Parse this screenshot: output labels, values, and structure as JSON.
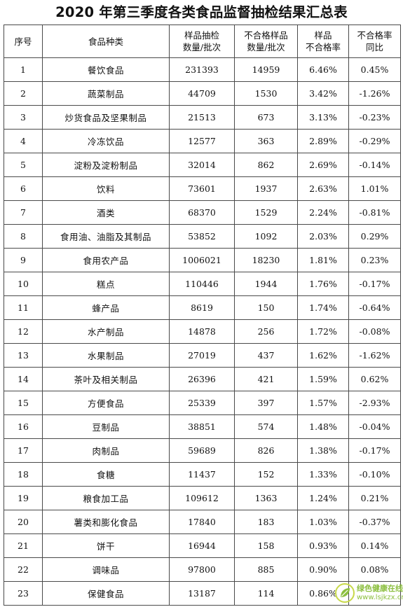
{
  "title": "2020 年第三季度各类食品监督抽检结果汇总表",
  "headers": {
    "index": "序号",
    "category": "食品种类",
    "samples_l1": "样品抽检",
    "samples_l2": "数量/批次",
    "fail_l1": "不合格样品",
    "fail_l2": "数量/批次",
    "rate_l1": "样品",
    "rate_l2": "不合格率",
    "yoy_l1": "不合格率",
    "yoy_l2": "同比"
  },
  "rows": [
    {
      "index": "1",
      "category": "餐饮食品",
      "samples": "231393",
      "failed": "14959",
      "rate": "6.46%",
      "yoy": "0.45%"
    },
    {
      "index": "2",
      "category": "蔬菜制品",
      "samples": "44709",
      "failed": "1530",
      "rate": "3.42%",
      "yoy": "-1.26%"
    },
    {
      "index": "3",
      "category": "炒货食品及坚果制品",
      "samples": "21513",
      "failed": "673",
      "rate": "3.13%",
      "yoy": "-0.23%"
    },
    {
      "index": "4",
      "category": "冷冻饮品",
      "samples": "12577",
      "failed": "363",
      "rate": "2.89%",
      "yoy": "-0.29%"
    },
    {
      "index": "5",
      "category": "淀粉及淀粉制品",
      "samples": "32014",
      "failed": "862",
      "rate": "2.69%",
      "yoy": "-0.14%"
    },
    {
      "index": "6",
      "category": "饮料",
      "samples": "73601",
      "failed": "1937",
      "rate": "2.63%",
      "yoy": "1.01%"
    },
    {
      "index": "7",
      "category": "酒类",
      "samples": "68370",
      "failed": "1529",
      "rate": "2.24%",
      "yoy": "-0.81%"
    },
    {
      "index": "8",
      "category": "食用油、油脂及其制品",
      "samples": "53852",
      "failed": "1092",
      "rate": "2.03%",
      "yoy": "0.29%"
    },
    {
      "index": "9",
      "category": "食用农产品",
      "samples": "1006021",
      "failed": "18230",
      "rate": "1.81%",
      "yoy": "0.23%"
    },
    {
      "index": "10",
      "category": "糕点",
      "samples": "110446",
      "failed": "1944",
      "rate": "1.76%",
      "yoy": "-0.17%"
    },
    {
      "index": "11",
      "category": "蜂产品",
      "samples": "8619",
      "failed": "150",
      "rate": "1.74%",
      "yoy": "-0.64%"
    },
    {
      "index": "12",
      "category": "水产制品",
      "samples": "14878",
      "failed": "256",
      "rate": "1.72%",
      "yoy": "-0.08%"
    },
    {
      "index": "13",
      "category": "水果制品",
      "samples": "27019",
      "failed": "437",
      "rate": "1.62%",
      "yoy": "-1.62%"
    },
    {
      "index": "14",
      "category": "茶叶及相关制品",
      "samples": "26396",
      "failed": "421",
      "rate": "1.59%",
      "yoy": "0.62%"
    },
    {
      "index": "15",
      "category": "方便食品",
      "samples": "25339",
      "failed": "397",
      "rate": "1.57%",
      "yoy": "-2.93%"
    },
    {
      "index": "16",
      "category": "豆制品",
      "samples": "38851",
      "failed": "574",
      "rate": "1.48%",
      "yoy": "-0.04%"
    },
    {
      "index": "17",
      "category": "肉制品",
      "samples": "59689",
      "failed": "826",
      "rate": "1.38%",
      "yoy": "-0.17%"
    },
    {
      "index": "18",
      "category": "食糖",
      "samples": "11437",
      "failed": "152",
      "rate": "1.33%",
      "yoy": "-0.10%"
    },
    {
      "index": "19",
      "category": "粮食加工品",
      "samples": "109612",
      "failed": "1363",
      "rate": "1.24%",
      "yoy": "0.21%"
    },
    {
      "index": "20",
      "category": "薯类和膨化食品",
      "samples": "17840",
      "failed": "183",
      "rate": "1.03%",
      "yoy": "-0.37%"
    },
    {
      "index": "21",
      "category": "饼干",
      "samples": "16944",
      "failed": "158",
      "rate": "0.93%",
      "yoy": "0.14%"
    },
    {
      "index": "22",
      "category": "调味品",
      "samples": "97800",
      "failed": "885",
      "rate": "0.90%",
      "yoy": "0.08%"
    },
    {
      "index": "23",
      "category": "保健食品",
      "samples": "13187",
      "failed": "114",
      "rate": "0.86%",
      "yoy": ""
    }
  ],
  "watermark": {
    "name": "绿色健康在线",
    "url": "www.lsjkzx.cn",
    "colors": {
      "leaf": "#8cbf3f",
      "ring": "#c8d94a",
      "text": "#8cbf3f"
    }
  }
}
